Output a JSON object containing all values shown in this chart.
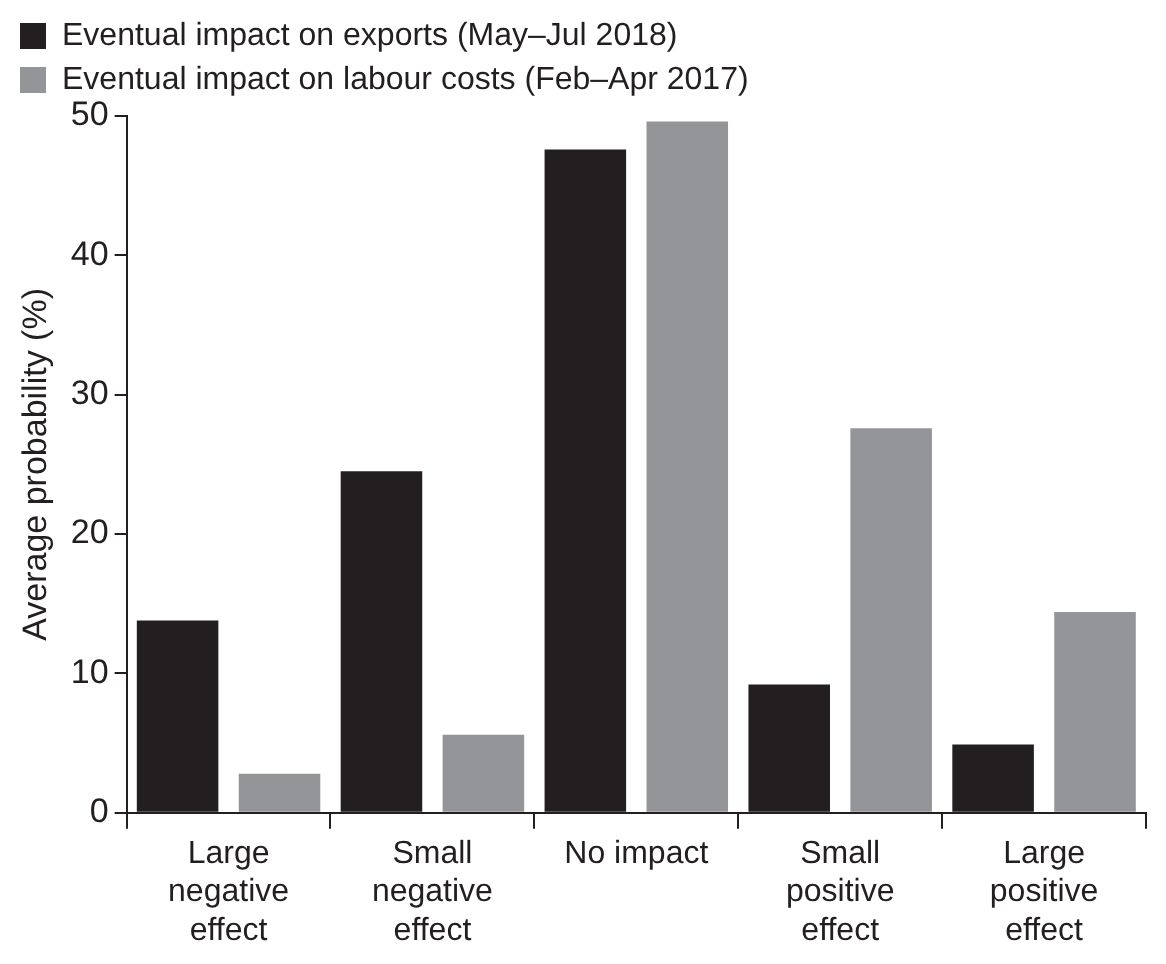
{
  "chart_data": {
    "type": "bar",
    "ylabel": "Average probability (%)",
    "categories": [
      "Large negative effect",
      "Small negative effect",
      "No impact",
      "Small positive effect",
      "Large positive effect"
    ],
    "series": [
      {
        "name": "Eventual impact on exports (May–Jul 2018)",
        "color": "#231f20",
        "values": [
          13.8,
          24.5,
          47.6,
          9.2,
          4.9
        ]
      },
      {
        "name": "Eventual impact on labour costs (Feb–Apr 2017)",
        "color": "#939598",
        "values": [
          2.8,
          5.6,
          49.6,
          27.6,
          14.4
        ]
      }
    ],
    "ylim": [
      0,
      50
    ],
    "yticks": [
      0,
      10,
      20,
      30,
      40,
      50
    ],
    "grid": false,
    "legend": "top left"
  }
}
